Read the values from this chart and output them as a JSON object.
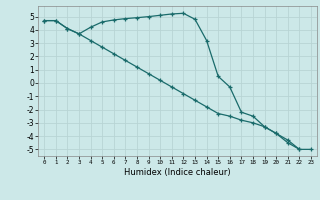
{
  "title": "",
  "xlabel": "Humidex (Indice chaleur)",
  "bg_color": "#cce8e8",
  "grid_color": "#b8d4d4",
  "line_color": "#1a6b6b",
  "xlim": [
    -0.5,
    23.5
  ],
  "ylim": [
    -5.5,
    5.8
  ],
  "yticks": [
    -5,
    -4,
    -3,
    -2,
    -1,
    0,
    1,
    2,
    3,
    4,
    5
  ],
  "xticks": [
    0,
    1,
    2,
    3,
    4,
    5,
    6,
    7,
    8,
    9,
    10,
    11,
    12,
    13,
    14,
    15,
    16,
    17,
    18,
    19,
    20,
    21,
    22,
    23
  ],
  "line1_x": [
    0,
    1,
    2,
    3,
    4,
    5,
    6,
    7,
    8,
    9,
    10,
    11,
    12,
    13,
    14,
    15,
    16,
    17,
    18,
    19,
    20,
    21,
    22,
    23
  ],
  "line1_y": [
    4.7,
    4.7,
    4.1,
    3.7,
    4.2,
    4.6,
    4.75,
    4.85,
    4.92,
    5.0,
    5.1,
    5.2,
    5.25,
    4.8,
    3.2,
    0.5,
    -0.3,
    -2.2,
    -2.5,
    -3.3,
    -3.8,
    -4.3,
    -5.0,
    -5.0
  ],
  "line2_x": [
    0,
    1,
    2,
    3,
    4,
    5,
    6,
    7,
    8,
    9,
    10,
    11,
    12,
    13,
    14,
    15,
    16,
    17,
    18,
    19,
    20,
    21,
    22
  ],
  "line2_y": [
    4.7,
    4.7,
    4.1,
    3.7,
    3.2,
    2.7,
    2.2,
    1.7,
    1.2,
    0.7,
    0.2,
    -0.3,
    -0.8,
    -1.3,
    -1.8,
    -2.3,
    -2.5,
    -2.8,
    -3.0,
    -3.3,
    -3.8,
    -4.5,
    -5.0
  ]
}
